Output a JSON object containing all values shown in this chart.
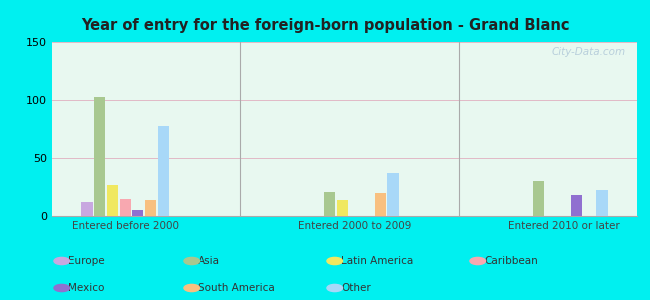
{
  "title": "Year of entry for the foreign-born population - Grand Blanc",
  "groups": [
    "Entered before 2000",
    "Entered 2000 to 2009",
    "Entered 2010 or later"
  ],
  "categories": [
    "Europe",
    "Asia",
    "Latin America",
    "Caribbean",
    "Mexico",
    "South America",
    "Other"
  ],
  "colors": [
    "#c8a8e0",
    "#a8c890",
    "#f0e860",
    "#f8a8b0",
    "#9070d0",
    "#f8c080",
    "#a8d8f8"
  ],
  "values": {
    "Entered before 2000": [
      12,
      103,
      27,
      15,
      5,
      14,
      78
    ],
    "Entered 2000 to 2009": [
      0,
      21,
      14,
      0,
      0,
      20,
      37
    ],
    "Entered 2010 or later": [
      0,
      30,
      0,
      0,
      18,
      0,
      22
    ]
  },
  "ylim": [
    0,
    150
  ],
  "yticks": [
    0,
    50,
    100,
    150
  ],
  "background_color": "#00f0f0",
  "plot_bg_color": "#e8f8f0",
  "watermark": "City-Data.com",
  "legend_labels_row1": [
    "Europe",
    "Asia",
    "Latin America",
    "Caribbean"
  ],
  "legend_labels_row2": [
    "Mexico",
    "South America",
    "Other"
  ],
  "legend_colors": [
    "#c8a8e0",
    "#a8c890",
    "#f0e860",
    "#f8a8b0",
    "#9070d0",
    "#f8c080",
    "#a8d8f8"
  ]
}
